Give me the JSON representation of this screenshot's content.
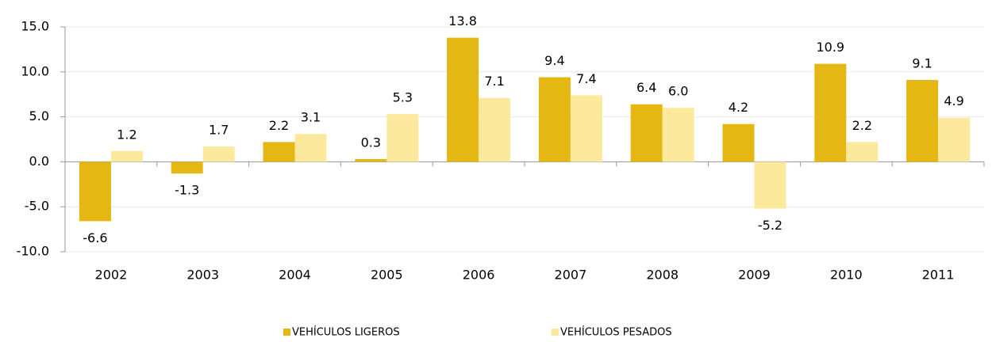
{
  "chart_data": {
    "type": "bar",
    "categories": [
      "2002",
      "2003",
      "2004",
      "2005",
      "2006",
      "2007",
      "2008",
      "2009",
      "2010",
      "2011"
    ],
    "series": [
      {
        "name": "VEHÍCULOS LIGEROS",
        "color": "#e5b713",
        "values": [
          -6.6,
          -1.3,
          2.2,
          0.3,
          13.8,
          9.4,
          6.4,
          4.2,
          10.9,
          9.1
        ],
        "value_labels": [
          "-6.6",
          "-1.3",
          "2.2",
          "0.3",
          "13.8",
          "9.4",
          "6.4",
          "4.2",
          "10.9",
          "9.1"
        ]
      },
      {
        "name": "VEHÍCULOS PESADOS",
        "color": "#fde99d",
        "values": [
          1.2,
          1.7,
          3.1,
          5.3,
          7.1,
          7.4,
          6.0,
          -5.2,
          2.2,
          4.9
        ],
        "value_labels": [
          "1.2",
          "1.7",
          "3.1",
          "5.3",
          "7.1",
          "7.4",
          "6.0",
          "-5.2",
          "2.2",
          "4.9"
        ]
      }
    ],
    "ylim": [
      -10,
      15
    ],
    "yticks": [
      {
        "value": -10,
        "label": "-10.0"
      },
      {
        "value": -5,
        "label": "-5.0"
      },
      {
        "value": 0,
        "label": "0.0"
      },
      {
        "value": 5,
        "label": "5.0"
      },
      {
        "value": 10,
        "label": "10.0"
      },
      {
        "value": 15,
        "label": "15.0"
      }
    ],
    "grid": true,
    "legend": "bottom"
  }
}
